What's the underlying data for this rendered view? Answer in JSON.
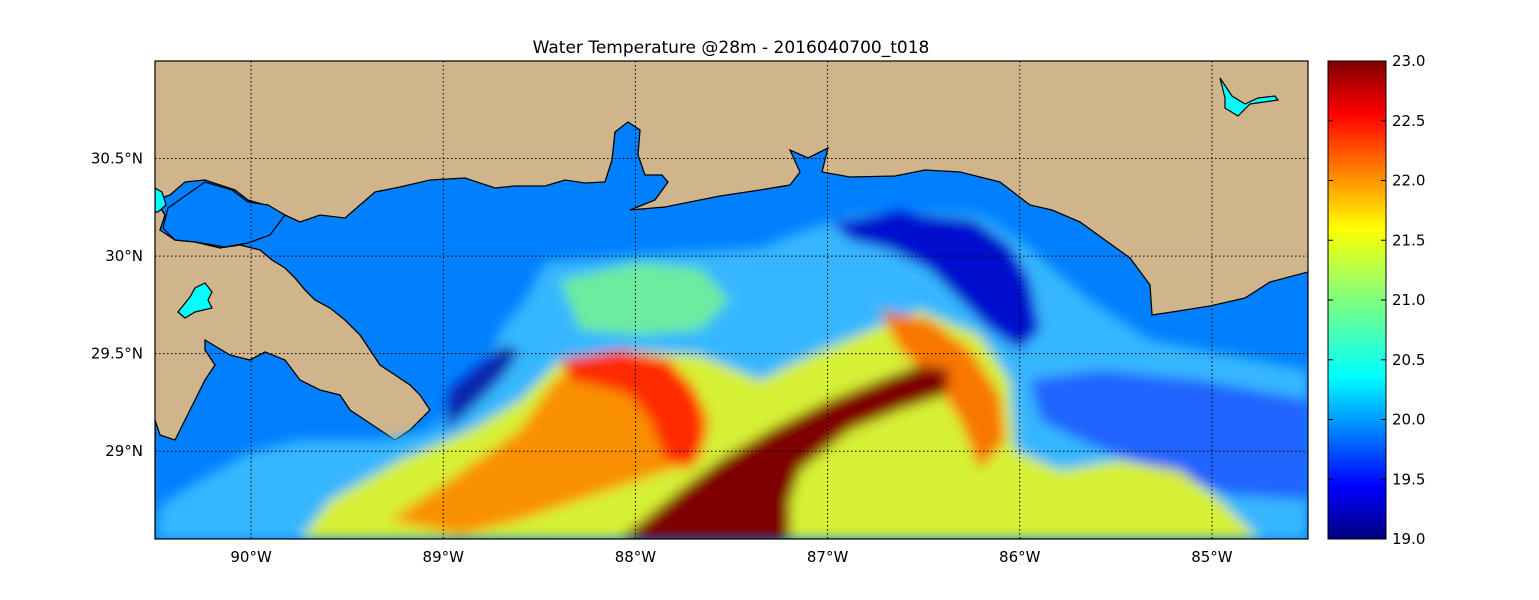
{
  "title": "Water Temperature @28m - 2016040700_t018",
  "map": {
    "lon_range": [
      -90.5,
      -84.5
    ],
    "lat_range": [
      28.55,
      31.0
    ],
    "lon_ticks": [
      {
        "value": -90,
        "label": "90°W"
      },
      {
        "value": -89,
        "label": "89°W"
      },
      {
        "value": -88,
        "label": "88°W"
      },
      {
        "value": -87,
        "label": "87°W"
      },
      {
        "value": -86,
        "label": "86°W"
      },
      {
        "value": -85,
        "label": "85°W"
      }
    ],
    "lat_ticks": [
      {
        "value": 30.5,
        "label": "30.5°N"
      },
      {
        "value": 30.0,
        "label": "30°N"
      },
      {
        "value": 29.5,
        "label": "29.5°N"
      },
      {
        "value": 29.0,
        "label": "29°N"
      }
    ],
    "grid": "dotted",
    "land_color": "#d0b48c",
    "lake_color": "#00ffff",
    "nodata_water_color": "#0080ff",
    "features": [
      {
        "kind": "warm-core",
        "lon": -87.2,
        "lat": 28.9,
        "value": 23.0
      },
      {
        "kind": "warm-ring",
        "lon": -87.9,
        "lat": 29.2,
        "value": 22.2
      },
      {
        "kind": "warm-band",
        "lon": -86.5,
        "lat": 29.3,
        "value": 22.0
      },
      {
        "kind": "cold-core",
        "lon": -86.1,
        "lat": 30.0,
        "value": 19.0
      },
      {
        "kind": "cold-edge",
        "lon": -89.0,
        "lat": 29.3,
        "value": 19.1
      }
    ]
  },
  "colorbar": {
    "min": 19.0,
    "max": 23.0,
    "colormap": "jet",
    "ticks": [
      "19.0",
      "19.5",
      "20.0",
      "20.5",
      "21.0",
      "21.5",
      "22.0",
      "22.5",
      "23.0"
    ]
  }
}
